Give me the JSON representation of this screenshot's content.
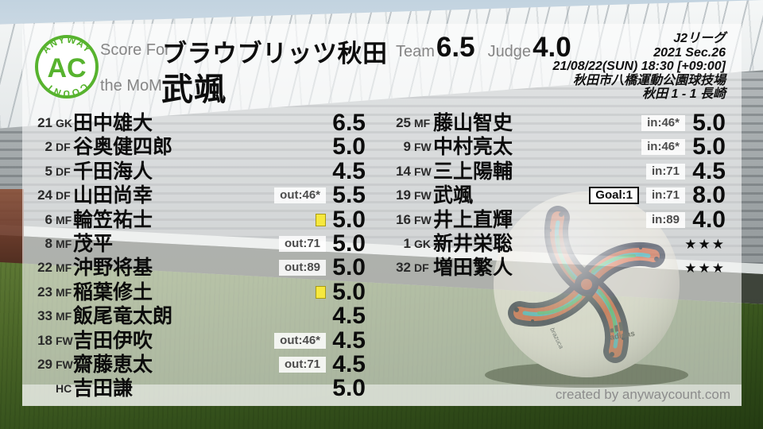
{
  "branding": {
    "logo_arc_top": "ANYWAY",
    "logo_center": "AC",
    "logo_arc_bottom": "COUNT",
    "footer_credit": "created by anywaycount.com"
  },
  "colors": {
    "accent_green": "#57b32e",
    "card_yellow": "#f6e83e",
    "ball_orange": "#dd5a30",
    "ball_teal": "#35bdc6",
    "ball_green": "#3fc06a",
    "ball_navy": "#242a3f"
  },
  "header": {
    "score_for_label": "Score For",
    "team_name": "ブラウブリッツ秋田",
    "mom_label": "the MoM",
    "mom_name": "武颯",
    "team_label": "Team",
    "team_score": "6.5",
    "judge_label": "Judge",
    "judge_score": "4.0"
  },
  "match_info": {
    "lines": [
      "J2リーグ",
      "2021 Sec.26",
      "21/08/22(SUN) 18:30 [+09:00]",
      "秋田市八橋運動公園球技場",
      "秋田 1 - 1 長崎"
    ]
  },
  "ball": {
    "brand": "adidas",
    "model": "brazuca"
  },
  "players_left": [
    {
      "num": "21",
      "pos": "GK",
      "name": "田中雄大",
      "rating": "6.5",
      "badges": [],
      "yellow": false,
      "stars": false
    },
    {
      "num": "2",
      "pos": "DF",
      "name": "谷奥健四郎",
      "rating": "5.0",
      "badges": [],
      "yellow": false,
      "stars": false
    },
    {
      "num": "5",
      "pos": "DF",
      "name": "千田海人",
      "rating": "4.5",
      "badges": [],
      "yellow": false,
      "stars": false
    },
    {
      "num": "24",
      "pos": "DF",
      "name": "山田尚幸",
      "rating": "5.5",
      "badges": [
        {
          "type": "out",
          "label": "out:46*"
        }
      ],
      "yellow": false,
      "stars": false
    },
    {
      "num": "6",
      "pos": "MF",
      "name": "輪笠祐士",
      "rating": "5.0",
      "badges": [],
      "yellow": true,
      "stars": false
    },
    {
      "num": "8",
      "pos": "MF",
      "name": "茂平",
      "rating": "5.0",
      "badges": [
        {
          "type": "out",
          "label": "out:71"
        }
      ],
      "yellow": false,
      "stars": false
    },
    {
      "num": "22",
      "pos": "MF",
      "name": "沖野将基",
      "rating": "5.0",
      "badges": [
        {
          "type": "out",
          "label": "out:89"
        }
      ],
      "yellow": false,
      "stars": false
    },
    {
      "num": "23",
      "pos": "MF",
      "name": "稲葉修土",
      "rating": "5.0",
      "badges": [],
      "yellow": true,
      "stars": false
    },
    {
      "num": "33",
      "pos": "MF",
      "name": "飯尾竜太朗",
      "rating": "4.5",
      "badges": [],
      "yellow": false,
      "stars": false
    },
    {
      "num": "18",
      "pos": "FW",
      "name": "吉田伊吹",
      "rating": "4.5",
      "badges": [
        {
          "type": "out",
          "label": "out:46*"
        }
      ],
      "yellow": false,
      "stars": false
    },
    {
      "num": "29",
      "pos": "FW",
      "name": "齋藤恵太",
      "rating": "4.5",
      "badges": [
        {
          "type": "out",
          "label": "out:71"
        }
      ],
      "yellow": false,
      "stars": false
    },
    {
      "num": "",
      "pos": "HC",
      "name": "吉田謙",
      "rating": "5.0",
      "badges": [],
      "yellow": false,
      "stars": false
    }
  ],
  "players_right": [
    {
      "num": "25",
      "pos": "MF",
      "name": "藤山智史",
      "rating": "5.0",
      "badges": [
        {
          "type": "in",
          "label": "in:46*"
        }
      ],
      "yellow": false,
      "stars": false
    },
    {
      "num": "9",
      "pos": "FW",
      "name": "中村亮太",
      "rating": "5.0",
      "badges": [
        {
          "type": "in",
          "label": "in:46*"
        }
      ],
      "yellow": false,
      "stars": false
    },
    {
      "num": "14",
      "pos": "FW",
      "name": "三上陽輔",
      "rating": "4.5",
      "badges": [
        {
          "type": "in",
          "label": "in:71"
        }
      ],
      "yellow": false,
      "stars": false
    },
    {
      "num": "19",
      "pos": "FW",
      "name": "武颯",
      "rating": "8.0",
      "badges": [
        {
          "type": "goal",
          "label": "Goal:1"
        },
        {
          "type": "in",
          "label": "in:71"
        }
      ],
      "yellow": false,
      "stars": false
    },
    {
      "num": "16",
      "pos": "FW",
      "name": "井上直輝",
      "rating": "4.0",
      "badges": [
        {
          "type": "in",
          "label": "in:89"
        }
      ],
      "yellow": false,
      "stars": false
    },
    {
      "num": "1",
      "pos": "GK",
      "name": "新井栄聡",
      "rating": "★★★",
      "badges": [],
      "yellow": false,
      "stars": true
    },
    {
      "num": "32",
      "pos": "DF",
      "name": "増田繁人",
      "rating": "★★★",
      "badges": [],
      "yellow": false,
      "stars": true
    }
  ]
}
